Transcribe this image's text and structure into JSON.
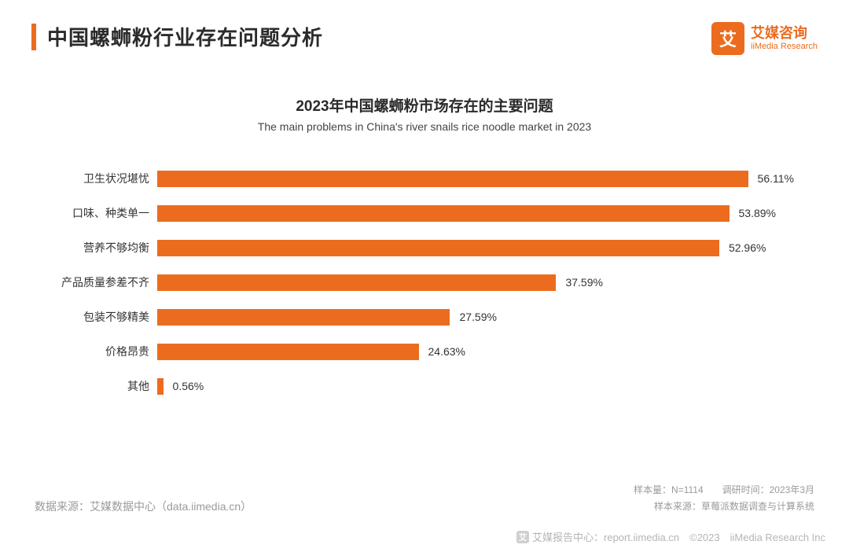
{
  "header": {
    "title": "中国螺蛳粉行业存在问题分析",
    "logo_cn": "艾媒咨询",
    "logo_en": "iiMedia Research",
    "logo_glyph": "艾"
  },
  "chart": {
    "type": "bar-horizontal",
    "title_cn": "2023年中国螺蛳粉市场存在的主要问题",
    "title_en": "The main problems in China's river snails rice noodle market in 2023",
    "bar_color": "#ec6c1f",
    "background_color": "#ffffff",
    "label_fontsize": 14,
    "value_fontsize": 14,
    "max_value_pct": 60,
    "bars": [
      {
        "label": "卫生状况堪忧",
        "value": 56.11,
        "display": "56.11%"
      },
      {
        "label": "口味、种类单一",
        "value": 53.89,
        "display": "53.89%"
      },
      {
        "label": "营养不够均衡",
        "value": 52.96,
        "display": "52.96%"
      },
      {
        "label": "产品质量参差不齐",
        "value": 37.59,
        "display": "37.59%"
      },
      {
        "label": "包装不够精美",
        "value": 27.59,
        "display": "27.59%"
      },
      {
        "label": "价格昂贵",
        "value": 24.63,
        "display": "24.63%"
      },
      {
        "label": "其他",
        "value": 0.56,
        "display": "0.56%"
      }
    ]
  },
  "footer": {
    "source_left": "数据来源：艾媒数据中心（data.iimedia.cn）",
    "sample": "样本量：N=1114　　调研时间：2023年3月",
    "sample_src": "样本来源：草莓派数据调查与计算系统",
    "copyright": "艾媒报告中心：report.iimedia.cn　©2023　iiMedia Research Inc",
    "mini_glyph": "艾"
  },
  "colors": {
    "accent": "#ec6c1f",
    "text": "#2b2b2b",
    "muted": "#9a9a9a"
  }
}
